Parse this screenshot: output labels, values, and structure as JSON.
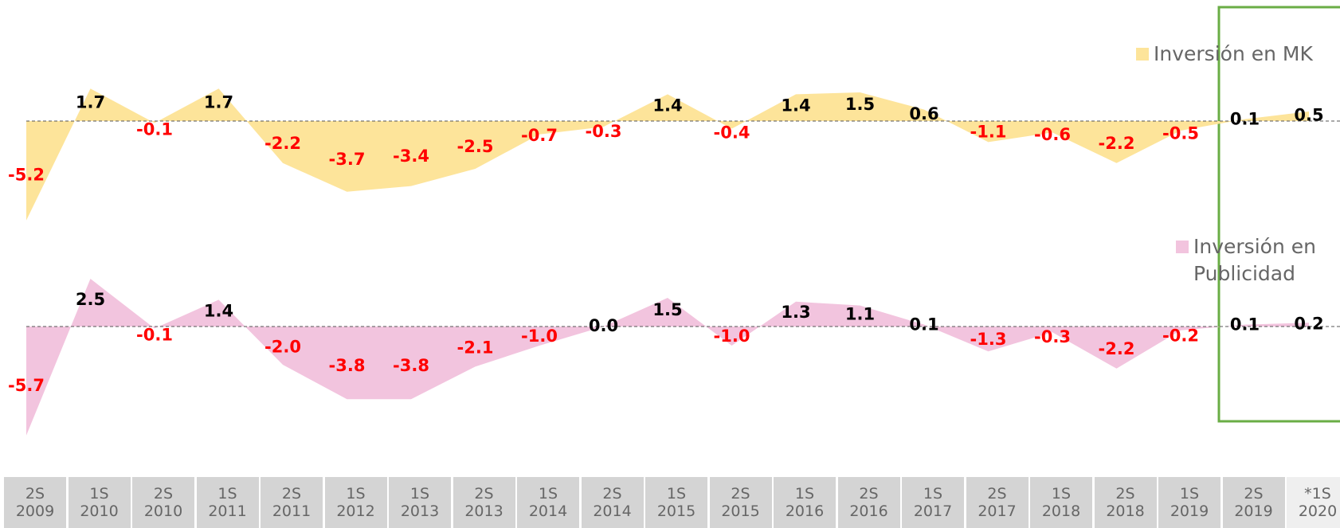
{
  "chart_data": {
    "type": "area",
    "categories": [
      "2S 2009",
      "1S 2010",
      "2S 2010",
      "1S 2011",
      "2S 2011",
      "1S 2012",
      "1S 2013",
      "2S 2013",
      "1S 2014",
      "2S 2014",
      "1S 2015",
      "2S 2015",
      "1S 2016",
      "2S 2016",
      "1S 2017",
      "2S 2017",
      "1S 2018",
      "2S 2018",
      "1S 2019",
      "2S 2019",
      "*1S 2020"
    ],
    "series": [
      {
        "name": "Inversión en MK",
        "color": "#fde49a",
        "values": [
          -5.2,
          1.7,
          -0.1,
          1.7,
          -2.2,
          -3.7,
          -3.4,
          -2.5,
          -0.7,
          -0.3,
          1.4,
          -0.4,
          1.4,
          1.5,
          0.6,
          -1.1,
          -0.6,
          -2.2,
          -0.5,
          0.1,
          0.5
        ],
        "value_labels": [
          "-5.2",
          "1.7",
          "-0.1",
          "1.7",
          "-2.2",
          "-3.7",
          "-3.4",
          "-2.5",
          "-0.7",
          "-0.3",
          "1.4",
          "-0.4",
          "1.4",
          "1.5",
          "0.6",
          "-1.1",
          "-0.6",
          "-2.2",
          "-0.5",
          "0.1",
          "0.5"
        ]
      },
      {
        "name": "Inversión en Publicidad",
        "color": "#f2c4de",
        "values": [
          -5.7,
          2.5,
          -0.1,
          1.4,
          -2.0,
          -3.8,
          -3.8,
          -2.1,
          -1.0,
          0.0,
          1.5,
          -1.0,
          1.3,
          1.1,
          0.1,
          -1.3,
          -0.3,
          -2.2,
          -0.2,
          0.1,
          0.2
        ],
        "value_labels": [
          "-5.7",
          "2.5",
          "-0.1",
          "1.4",
          "-2.0",
          "-3.8",
          "-3.8",
          "-2.1",
          "-1.0",
          "0.0",
          "1.5",
          "-1.0",
          "1.3",
          "1.1",
          "0.1",
          "-1.3",
          "-0.3",
          "-2.2",
          "-0.2",
          "0.1",
          "0.2"
        ]
      }
    ],
    "positive_label_color": "#000000",
    "negative_label_color": "#ff0000"
  }
}
